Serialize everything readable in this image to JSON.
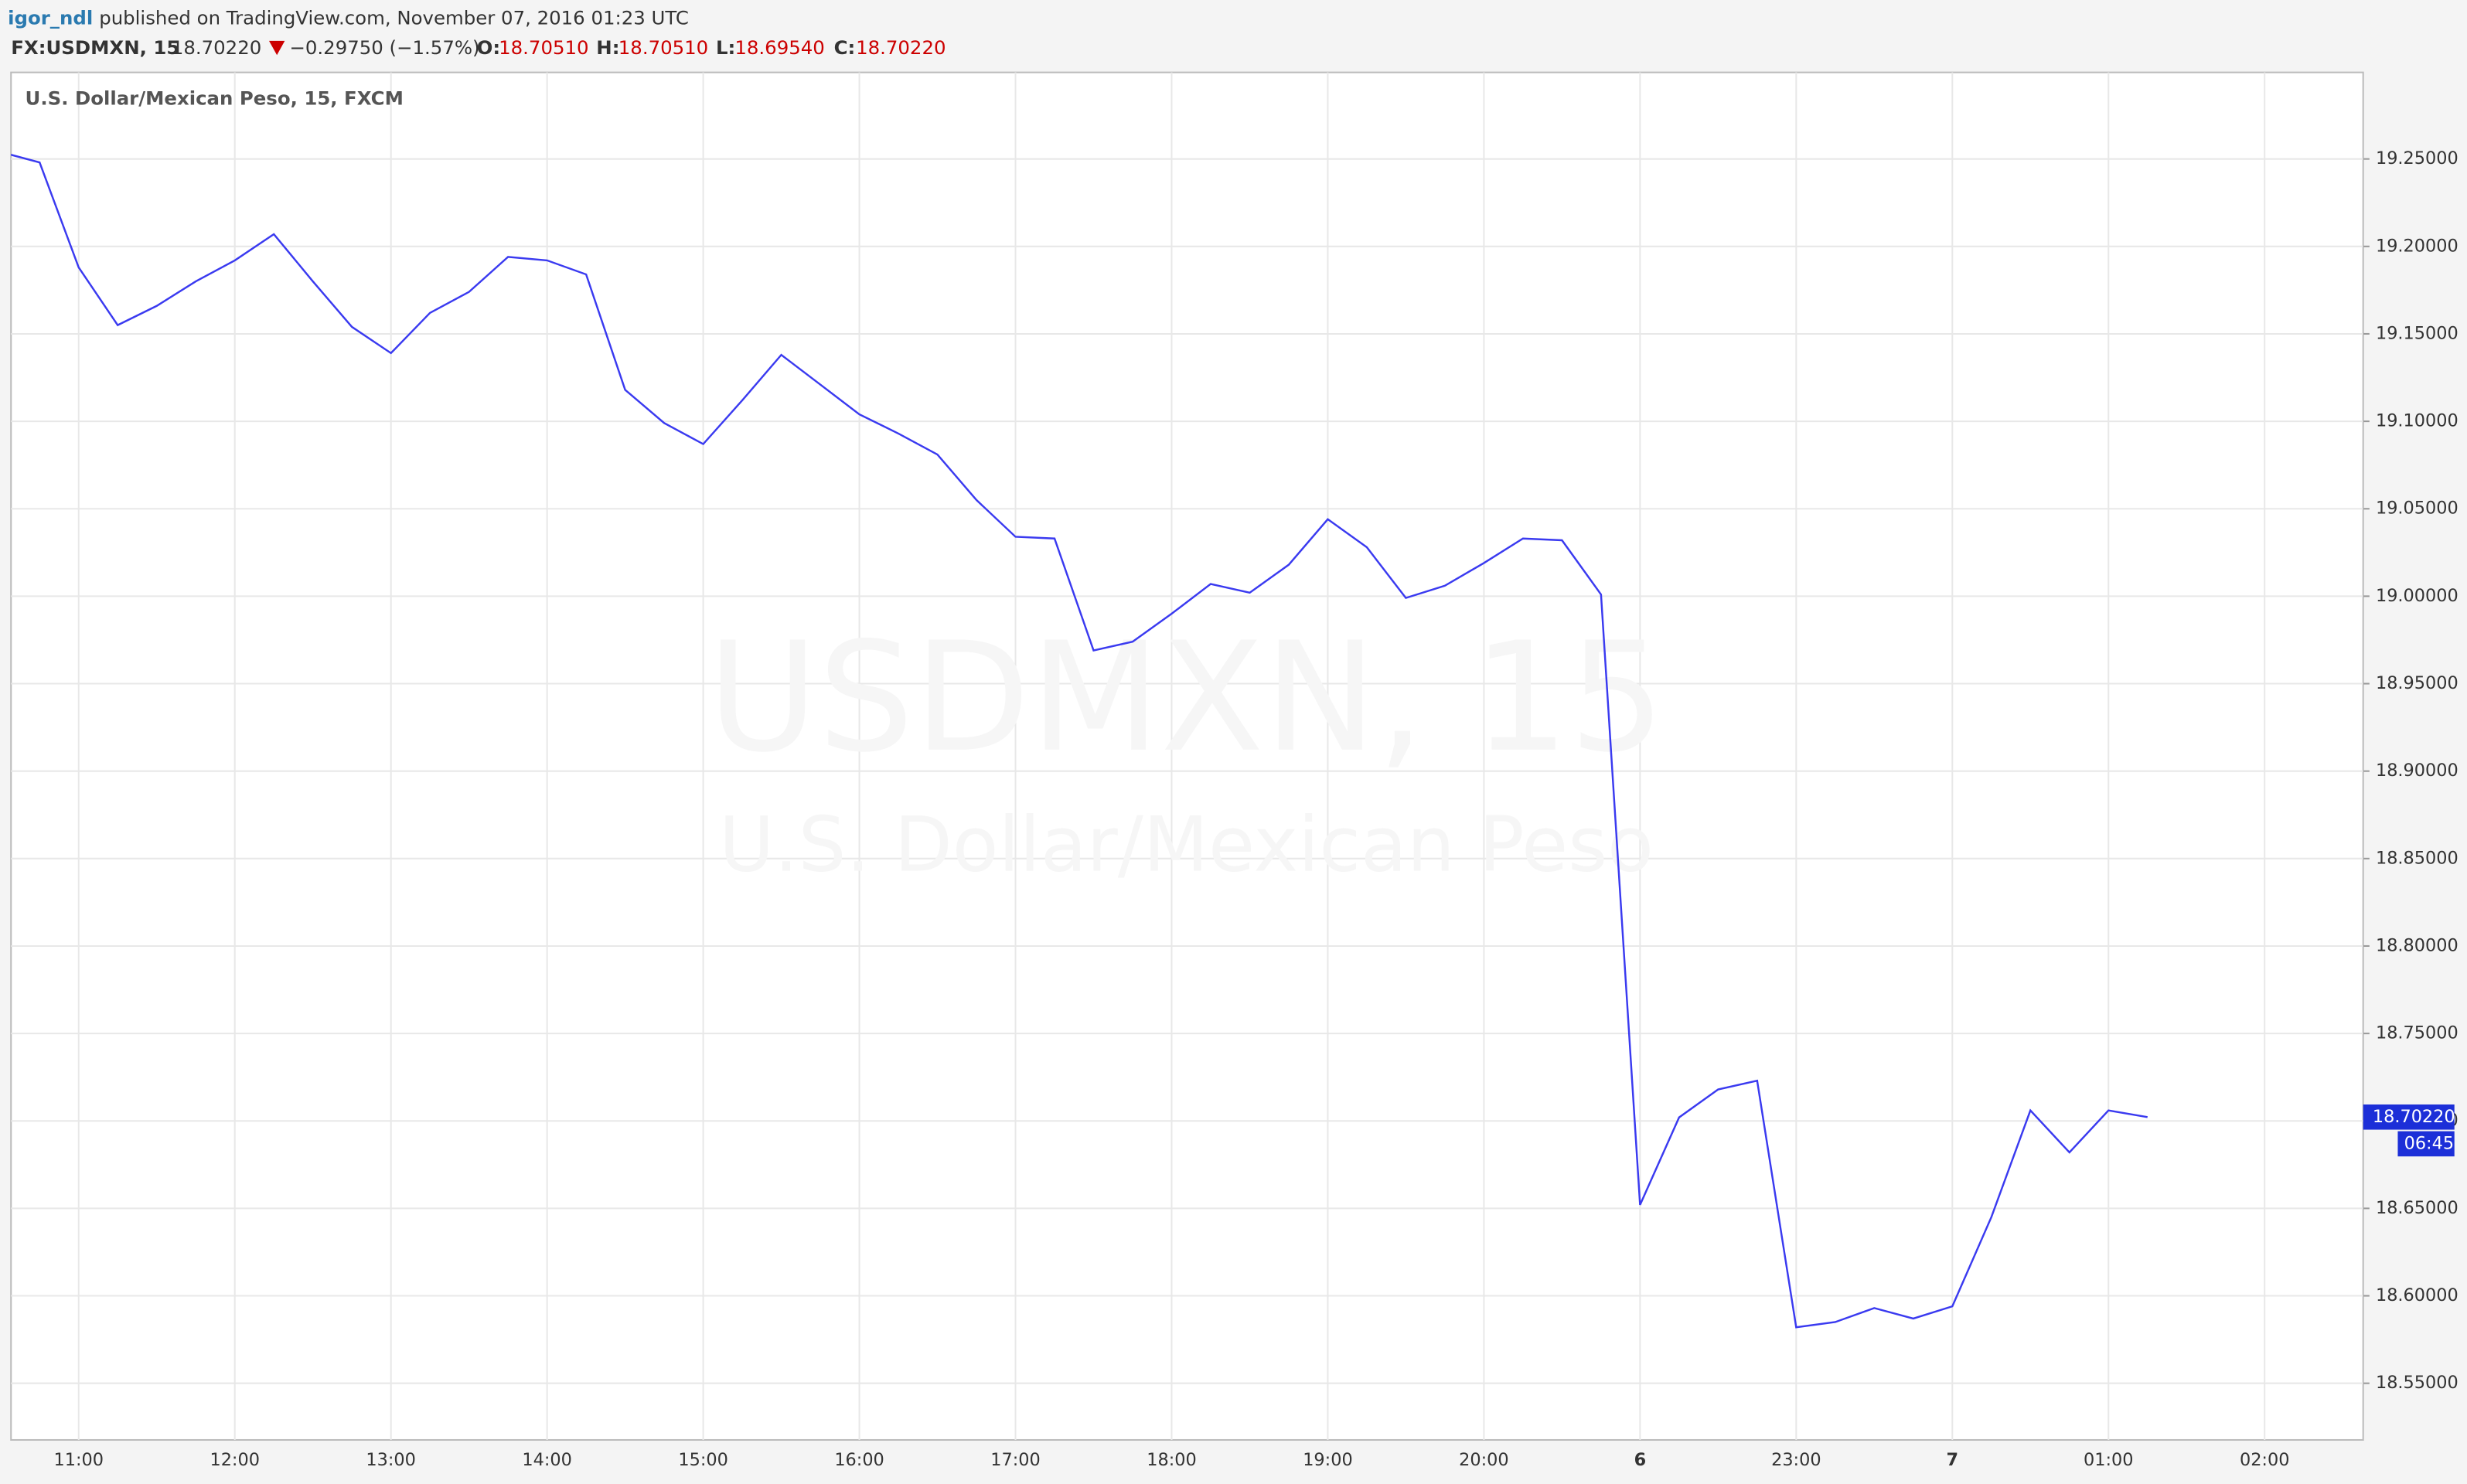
{
  "header": {
    "user": "igor_ndl",
    "published": "published on TradingView.com, November 07, 2016 01:23 UTC",
    "symbol": "FX:USDMXN, 15",
    "last": "18.70220",
    "change": "−0.29750 (−1.57%)",
    "open_label": "O:",
    "open": "18.70510",
    "high_label": "H:",
    "high": "18.70510",
    "low_label": "L:",
    "low": "18.69540",
    "close_label": "C:",
    "close": "18.70220"
  },
  "chart_data": {
    "type": "line",
    "legend": "U.S. Dollar/Mexican Peso, 15, FXCM",
    "watermark": "USDMXN, 15",
    "watermark_sub": "U.S. Dollar/Mexican Peso",
    "price_label": "18.70220",
    "countdown": "06:45",
    "categories": [
      null,
      null,
      "11:00",
      null,
      null,
      null,
      "12:00",
      null,
      null,
      null,
      "13:00",
      null,
      null,
      null,
      "14:00",
      null,
      null,
      null,
      "15:00",
      null,
      null,
      null,
      "16:00",
      null,
      null,
      null,
      "17:00",
      null,
      null,
      null,
      "18:00",
      null,
      null,
      null,
      "19:00",
      null,
      null,
      null,
      "20:00",
      null,
      null,
      null,
      "6",
      null,
      null,
      null,
      "23:00",
      null,
      null,
      null,
      "7",
      null,
      null,
      null,
      "01:00",
      null,
      null,
      null,
      "02:00",
      null,
      null
    ],
    "series": [
      {
        "name": "USDMXN",
        "color": "#3a3af0",
        "values": [
          19.254,
          19.248,
          19.188,
          19.155,
          19.166,
          19.18,
          19.192,
          19.207,
          19.18,
          19.154,
          19.139,
          19.162,
          19.174,
          19.194,
          19.192,
          19.184,
          19.118,
          19.099,
          19.087,
          19.112,
          19.138,
          19.121,
          19.104,
          19.093,
          19.081,
          19.055,
          19.034,
          19.033,
          18.969,
          18.974,
          18.99,
          19.007,
          19.002,
          19.018,
          19.044,
          19.028,
          18.999,
          19.006,
          19.019,
          19.033,
          19.032,
          19.001,
          18.652,
          18.702,
          18.718,
          18.723,
          18.582,
          18.585,
          18.593,
          18.587,
          18.594,
          18.645,
          18.706,
          18.682,
          18.706,
          18.7022,
          null,
          null,
          null,
          null,
          null
        ]
      }
    ],
    "ylim": [
      18.5176,
      19.2995
    ],
    "yticks": [
      {
        "value": 18.55,
        "label": "18.55000"
      },
      {
        "value": 18.6,
        "label": "18.60000"
      },
      {
        "value": 18.65,
        "label": "18.65000"
      },
      {
        "value": 18.7,
        "label": "18.70000"
      },
      {
        "value": 18.75,
        "label": "18.75000"
      },
      {
        "value": 18.8,
        "label": "18.80000"
      },
      {
        "value": 18.85,
        "label": "18.85000"
      },
      {
        "value": 18.9,
        "label": "18.90000"
      },
      {
        "value": 18.95,
        "label": "18.95000"
      },
      {
        "value": 19.0,
        "label": "19.00000"
      },
      {
        "value": 19.05,
        "label": "19.05000"
      },
      {
        "value": 19.1,
        "label": "19.10000"
      },
      {
        "value": 19.15,
        "label": "19.15000"
      },
      {
        "value": 19.2,
        "label": "19.20000"
      },
      {
        "value": 19.25,
        "label": "19.25000"
      }
    ],
    "grid": true
  }
}
